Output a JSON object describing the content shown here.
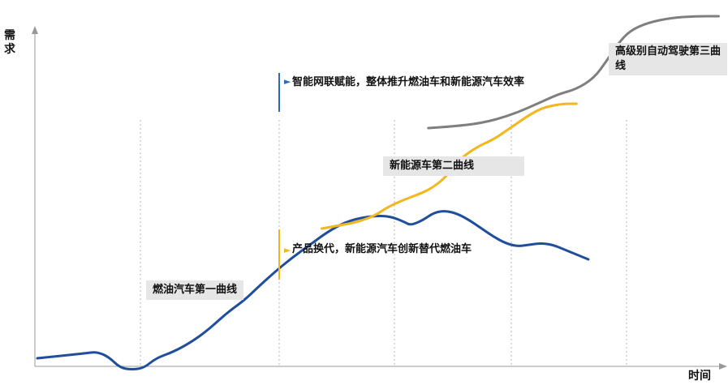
{
  "chart_data": {
    "type": "line",
    "xlabel": "时间",
    "ylabel": "需求",
    "grid": "vertical-dotted",
    "colors": {
      "first_curve": "#1f4e9c",
      "second_curve": "#f2b71c",
      "third_curve": "#7f7f7f"
    },
    "series": [
      {
        "values": [
          [
            0,
            2
          ],
          [
            8,
            5
          ],
          [
            10,
            6
          ],
          [
            12,
            3
          ],
          [
            14,
            -4
          ],
          [
            16,
            -5
          ],
          [
            18,
            -4
          ],
          [
            20,
            2
          ],
          [
            23,
            6
          ],
          [
            26,
            12
          ],
          [
            29,
            20
          ],
          [
            32,
            30
          ],
          [
            35,
            38
          ],
          [
            37,
            45
          ],
          [
            40,
            55
          ],
          [
            43,
            64
          ],
          [
            46,
            72
          ],
          [
            49,
            80
          ],
          [
            52,
            86
          ],
          [
            55,
            89
          ],
          [
            58,
            90
          ],
          [
            60,
            89
          ],
          [
            62,
            86
          ],
          [
            63,
            84
          ],
          [
            65,
            87
          ],
          [
            67,
            92
          ],
          [
            69,
            93
          ],
          [
            71,
            91
          ],
          [
            73,
            87
          ],
          [
            75,
            82
          ],
          [
            77,
            77
          ],
          [
            79,
            73
          ],
          [
            81,
            71
          ],
          [
            83,
            72
          ],
          [
            85,
            73
          ],
          [
            87,
            72
          ],
          [
            89,
            69
          ],
          [
            91,
            66
          ],
          [
            93,
            63
          ]
        ]
      },
      {
        "values": [
          [
            48,
            82
          ],
          [
            51,
            84
          ],
          [
            54,
            86
          ],
          [
            57,
            90
          ],
          [
            59,
            95
          ],
          [
            62,
            100
          ],
          [
            65,
            104
          ],
          [
            67,
            108
          ],
          [
            69,
            114
          ],
          [
            71,
            124
          ],
          [
            74,
            132
          ],
          [
            77,
            137
          ],
          [
            79,
            142
          ],
          [
            81,
            147
          ],
          [
            83,
            152
          ],
          [
            85,
            156
          ],
          [
            87,
            158
          ],
          [
            89,
            159
          ],
          [
            91,
            159
          ]
        ]
      },
      {
        "values": [
          [
            66,
            144
          ],
          [
            70,
            145
          ],
          [
            75,
            147
          ],
          [
            80,
            152
          ],
          [
            85,
            160
          ],
          [
            88,
            165
          ],
          [
            91,
            168
          ],
          [
            94,
            175
          ],
          [
            96,
            185
          ],
          [
            98,
            196
          ],
          [
            100,
            204
          ],
          [
            103,
            209
          ],
          [
            107,
            212
          ],
          [
            111,
            213
          ],
          [
            115,
            213
          ]
        ]
      }
    ],
    "annotations": [
      {
        "label": "燃油汽车第一曲线",
        "boxed": true
      },
      {
        "label": "新能源车第二曲线",
        "boxed": true
      },
      {
        "label": "高级别自动驾驶第三曲线",
        "boxed": true
      },
      {
        "label": "智能网联赋能，整体推升燃油车和新能源汽车效率",
        "marker_color": "#2f6bb5"
      },
      {
        "label": "产品换代，新能源汽车创新替代燃油车",
        "marker_color": "#f2b71c"
      }
    ]
  }
}
